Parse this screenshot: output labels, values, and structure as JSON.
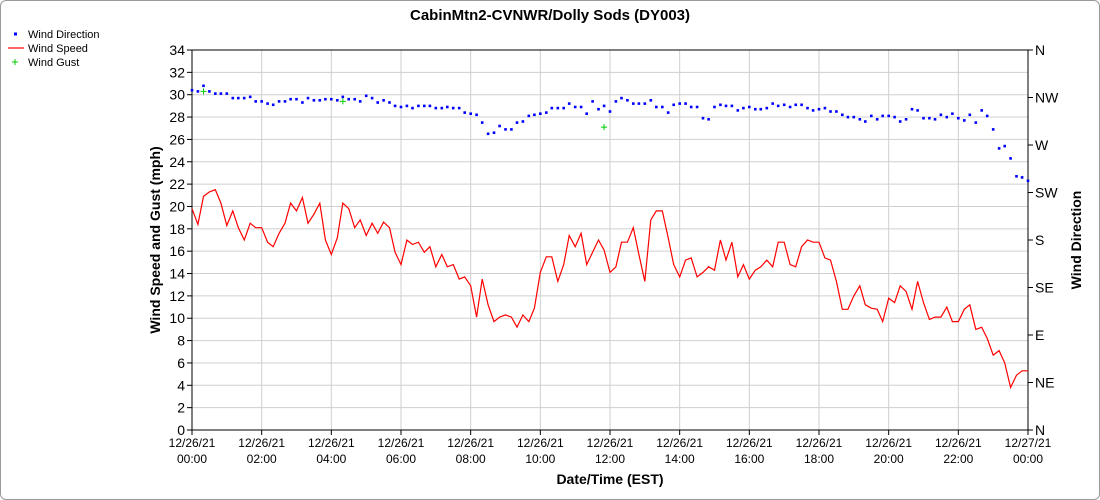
{
  "chart_data": {
    "type": "line",
    "title": "CabinMtn2-CVNWR/Dolly Sods (DY003)",
    "xlabel": "Date/Time (EST)",
    "ylabel_left": "Wind Speed and Gust (mph)",
    "ylabel_right": "Wind Direction",
    "y_left_range": [
      0,
      34
    ],
    "y_left_ticks": [
      "0",
      "2",
      "4",
      "6",
      "8",
      "10",
      "12",
      "14",
      "16",
      "18",
      "20",
      "22",
      "24",
      "26",
      "28",
      "30",
      "32",
      "34"
    ],
    "y_right_ticks": [
      "N",
      "NE",
      "E",
      "SE",
      "S",
      "SW",
      "W",
      "NW",
      "N"
    ],
    "x_range_hours": [
      0,
      24
    ],
    "x_ticks": [
      {
        "date": "12/26/21",
        "time": "00:00"
      },
      {
        "date": "12/26/21",
        "time": "02:00"
      },
      {
        "date": "12/26/21",
        "time": "04:00"
      },
      {
        "date": "12/26/21",
        "time": "06:00"
      },
      {
        "date": "12/26/21",
        "time": "08:00"
      },
      {
        "date": "12/26/21",
        "time": "10:00"
      },
      {
        "date": "12/26/21",
        "time": "12:00"
      },
      {
        "date": "12/26/21",
        "time": "14:00"
      },
      {
        "date": "12/26/21",
        "time": "16:00"
      },
      {
        "date": "12/26/21",
        "time": "18:00"
      },
      {
        "date": "12/26/21",
        "time": "20:00"
      },
      {
        "date": "12/26/21",
        "time": "22:00"
      },
      {
        "date": "12/27/21",
        "time": "00:00"
      }
    ],
    "grid": true,
    "legend_position": "top-left",
    "series": [
      {
        "name": "Wind Speed",
        "color": "#ff0000",
        "style": "line",
        "points": [
          [
            0,
            19.8
          ],
          [
            0.17,
            18.4
          ],
          [
            0.33,
            20.9
          ],
          [
            0.5,
            21.3
          ],
          [
            0.67,
            21.5
          ],
          [
            0.83,
            20.3
          ],
          [
            1.0,
            18.3
          ],
          [
            1.17,
            19.6
          ],
          [
            1.33,
            18.1
          ],
          [
            1.5,
            17.0
          ],
          [
            1.67,
            18.5
          ],
          [
            1.83,
            18.1
          ],
          [
            2.0,
            18.1
          ],
          [
            2.17,
            16.8
          ],
          [
            2.33,
            16.4
          ],
          [
            2.5,
            17.6
          ],
          [
            2.67,
            18.5
          ],
          [
            2.83,
            20.3
          ],
          [
            3.0,
            19.6
          ],
          [
            3.17,
            20.8
          ],
          [
            3.33,
            18.5
          ],
          [
            3.5,
            19.3
          ],
          [
            3.67,
            20.3
          ],
          [
            3.83,
            17.0
          ],
          [
            4.0,
            15.7
          ],
          [
            4.17,
            17.2
          ],
          [
            4.33,
            20.3
          ],
          [
            4.5,
            19.8
          ],
          [
            4.67,
            18.1
          ],
          [
            4.83,
            18.8
          ],
          [
            5.0,
            17.4
          ],
          [
            5.17,
            18.5
          ],
          [
            5.33,
            17.6
          ],
          [
            5.5,
            18.6
          ],
          [
            5.67,
            18.1
          ],
          [
            5.83,
            15.9
          ],
          [
            6.0,
            14.8
          ],
          [
            6.17,
            17.0
          ],
          [
            6.33,
            16.6
          ],
          [
            6.5,
            16.8
          ],
          [
            6.67,
            15.9
          ],
          [
            6.83,
            16.4
          ],
          [
            7.0,
            14.6
          ],
          [
            7.17,
            15.7
          ],
          [
            7.33,
            14.6
          ],
          [
            7.5,
            14.8
          ],
          [
            7.67,
            13.5
          ],
          [
            7.83,
            13.7
          ],
          [
            8.0,
            12.9
          ],
          [
            8.17,
            10.1
          ],
          [
            8.33,
            13.5
          ],
          [
            8.5,
            11.2
          ],
          [
            8.67,
            9.7
          ],
          [
            8.83,
            10.1
          ],
          [
            9.0,
            10.3
          ],
          [
            9.17,
            10.1
          ],
          [
            9.33,
            9.2
          ],
          [
            9.5,
            10.3
          ],
          [
            9.67,
            9.7
          ],
          [
            9.83,
            10.9
          ],
          [
            10.0,
            14.1
          ],
          [
            10.17,
            15.5
          ],
          [
            10.33,
            15.5
          ],
          [
            10.5,
            13.3
          ],
          [
            10.67,
            14.8
          ],
          [
            10.83,
            17.4
          ],
          [
            11.0,
            16.4
          ],
          [
            11.17,
            17.6
          ],
          [
            11.33,
            14.8
          ],
          [
            11.5,
            15.9
          ],
          [
            11.67,
            17.0
          ],
          [
            11.83,
            16.1
          ],
          [
            12.0,
            14.1
          ],
          [
            12.17,
            14.6
          ],
          [
            12.33,
            16.8
          ],
          [
            12.5,
            16.8
          ],
          [
            12.67,
            18.1
          ],
          [
            12.83,
            15.7
          ],
          [
            13.0,
            13.3
          ],
          [
            13.17,
            18.8
          ],
          [
            13.33,
            19.6
          ],
          [
            13.5,
            19.6
          ],
          [
            13.67,
            17.2
          ],
          [
            13.83,
            14.8
          ],
          [
            14.0,
            13.7
          ],
          [
            14.17,
            15.2
          ],
          [
            14.33,
            15.4
          ],
          [
            14.5,
            13.7
          ],
          [
            14.67,
            14.1
          ],
          [
            14.83,
            14.6
          ],
          [
            15.0,
            14.3
          ],
          [
            15.17,
            17.0
          ],
          [
            15.33,
            15.2
          ],
          [
            15.5,
            16.8
          ],
          [
            15.67,
            13.7
          ],
          [
            15.83,
            14.8
          ],
          [
            16.0,
            13.5
          ],
          [
            16.17,
            14.3
          ],
          [
            16.33,
            14.6
          ],
          [
            16.5,
            15.2
          ],
          [
            16.67,
            14.6
          ],
          [
            16.83,
            16.8
          ],
          [
            17.0,
            16.8
          ],
          [
            17.17,
            14.8
          ],
          [
            17.33,
            14.6
          ],
          [
            17.5,
            16.4
          ],
          [
            17.67,
            17.0
          ],
          [
            17.83,
            16.8
          ],
          [
            18.0,
            16.8
          ],
          [
            18.17,
            15.4
          ],
          [
            18.33,
            15.2
          ],
          [
            18.5,
            13.3
          ],
          [
            18.67,
            10.8
          ],
          [
            18.83,
            10.8
          ],
          [
            19.0,
            12.0
          ],
          [
            19.17,
            12.9
          ],
          [
            19.33,
            11.2
          ],
          [
            19.5,
            10.9
          ],
          [
            19.67,
            10.8
          ],
          [
            19.83,
            9.7
          ],
          [
            20.0,
            11.8
          ],
          [
            20.17,
            11.4
          ],
          [
            20.33,
            12.9
          ],
          [
            20.5,
            12.4
          ],
          [
            20.67,
            10.8
          ],
          [
            20.83,
            13.3
          ],
          [
            21.0,
            11.4
          ],
          [
            21.17,
            9.9
          ],
          [
            21.33,
            10.1
          ],
          [
            21.5,
            10.1
          ],
          [
            21.67,
            11.0
          ],
          [
            21.83,
            9.7
          ],
          [
            22.0,
            9.7
          ],
          [
            22.17,
            10.8
          ],
          [
            22.33,
            11.2
          ],
          [
            22.5,
            9.0
          ],
          [
            22.67,
            9.2
          ],
          [
            22.83,
            8.2
          ],
          [
            23.0,
            6.7
          ],
          [
            23.17,
            7.1
          ],
          [
            23.33,
            6.0
          ],
          [
            23.5,
            3.8
          ],
          [
            23.67,
            4.9
          ],
          [
            23.83,
            5.3
          ],
          [
            24.0,
            5.3
          ]
        ]
      },
      {
        "name": "Wind Direction",
        "color": "#0000ff",
        "style": "dots",
        "points": [
          [
            0,
            30.4
          ],
          [
            0.17,
            30.3
          ],
          [
            0.33,
            30.8
          ],
          [
            0.5,
            30.3
          ],
          [
            0.67,
            30.1
          ],
          [
            0.83,
            30.1
          ],
          [
            1.0,
            30.1
          ],
          [
            1.17,
            29.7
          ],
          [
            1.33,
            29.7
          ],
          [
            1.5,
            29.7
          ],
          [
            1.67,
            29.8
          ],
          [
            1.83,
            29.4
          ],
          [
            2.0,
            29.4
          ],
          [
            2.17,
            29.2
          ],
          [
            2.33,
            29.1
          ],
          [
            2.5,
            29.4
          ],
          [
            2.67,
            29.4
          ],
          [
            2.83,
            29.6
          ],
          [
            3.0,
            29.6
          ],
          [
            3.17,
            29.3
          ],
          [
            3.33,
            29.7
          ],
          [
            3.5,
            29.5
          ],
          [
            3.67,
            29.5
          ],
          [
            3.83,
            29.6
          ],
          [
            4.0,
            29.6
          ],
          [
            4.17,
            29.5
          ],
          [
            4.33,
            29.8
          ],
          [
            4.5,
            29.6
          ],
          [
            4.67,
            29.6
          ],
          [
            4.83,
            29.4
          ],
          [
            5.0,
            29.9
          ],
          [
            5.17,
            29.7
          ],
          [
            5.33,
            29.3
          ],
          [
            5.5,
            29.5
          ],
          [
            5.67,
            29.3
          ],
          [
            5.83,
            29.0
          ],
          [
            6.0,
            28.9
          ],
          [
            6.17,
            29.0
          ],
          [
            6.33,
            28.8
          ],
          [
            6.5,
            29.0
          ],
          [
            6.67,
            29.0
          ],
          [
            6.83,
            29.0
          ],
          [
            7.0,
            28.8
          ],
          [
            7.17,
            28.8
          ],
          [
            7.33,
            28.9
          ],
          [
            7.5,
            28.8
          ],
          [
            7.67,
            28.8
          ],
          [
            7.83,
            28.4
          ],
          [
            8.0,
            28.3
          ],
          [
            8.17,
            28.2
          ],
          [
            8.33,
            27.5
          ],
          [
            8.5,
            26.5
          ],
          [
            8.67,
            26.6
          ],
          [
            8.83,
            27.2
          ],
          [
            9.0,
            26.9
          ],
          [
            9.17,
            26.9
          ],
          [
            9.33,
            27.5
          ],
          [
            9.5,
            27.6
          ],
          [
            9.67,
            28.1
          ],
          [
            9.83,
            28.2
          ],
          [
            10.0,
            28.3
          ],
          [
            10.17,
            28.4
          ],
          [
            10.33,
            28.8
          ],
          [
            10.5,
            28.8
          ],
          [
            10.67,
            28.8
          ],
          [
            10.83,
            29.2
          ],
          [
            11.0,
            28.9
          ],
          [
            11.17,
            28.9
          ],
          [
            11.33,
            28.3
          ],
          [
            11.5,
            29.4
          ],
          [
            11.67,
            28.7
          ],
          [
            11.83,
            29.0
          ],
          [
            12.0,
            28.5
          ],
          [
            12.17,
            29.4
          ],
          [
            12.33,
            29.7
          ],
          [
            12.5,
            29.5
          ],
          [
            12.67,
            29.2
          ],
          [
            12.83,
            29.2
          ],
          [
            13.0,
            29.2
          ],
          [
            13.17,
            29.5
          ],
          [
            13.33,
            28.9
          ],
          [
            13.5,
            28.9
          ],
          [
            13.67,
            28.4
          ],
          [
            13.83,
            29.1
          ],
          [
            14.0,
            29.2
          ],
          [
            14.17,
            29.2
          ],
          [
            14.33,
            28.9
          ],
          [
            14.5,
            28.9
          ],
          [
            14.67,
            27.9
          ],
          [
            14.83,
            27.8
          ],
          [
            15.0,
            28.9
          ],
          [
            15.17,
            29.1
          ],
          [
            15.33,
            29.0
          ],
          [
            15.5,
            29.0
          ],
          [
            15.67,
            28.6
          ],
          [
            15.83,
            28.8
          ],
          [
            16.0,
            28.9
          ],
          [
            16.17,
            28.7
          ],
          [
            16.33,
            28.7
          ],
          [
            16.5,
            28.8
          ],
          [
            16.67,
            29.2
          ],
          [
            16.83,
            29.0
          ],
          [
            17.0,
            29.1
          ],
          [
            17.17,
            28.9
          ],
          [
            17.33,
            29.1
          ],
          [
            17.5,
            29.1
          ],
          [
            17.67,
            28.8
          ],
          [
            17.83,
            28.6
          ],
          [
            18.0,
            28.7
          ],
          [
            18.17,
            28.8
          ],
          [
            18.33,
            28.5
          ],
          [
            18.5,
            28.5
          ],
          [
            18.67,
            28.2
          ],
          [
            18.83,
            28.0
          ],
          [
            19.0,
            28.0
          ],
          [
            19.17,
            27.8
          ],
          [
            19.33,
            27.6
          ],
          [
            19.5,
            28.1
          ],
          [
            19.67,
            27.8
          ],
          [
            19.83,
            28.1
          ],
          [
            20.0,
            28.1
          ],
          [
            20.17,
            28.0
          ],
          [
            20.33,
            27.6
          ],
          [
            20.5,
            27.8
          ],
          [
            20.67,
            28.7
          ],
          [
            20.83,
            28.6
          ],
          [
            21.0,
            27.9
          ],
          [
            21.17,
            27.9
          ],
          [
            21.33,
            27.8
          ],
          [
            21.5,
            28.2
          ],
          [
            21.67,
            28.0
          ],
          [
            21.83,
            28.3
          ],
          [
            22.0,
            27.9
          ],
          [
            22.17,
            27.7
          ],
          [
            22.33,
            28.2
          ],
          [
            22.5,
            27.5
          ],
          [
            22.67,
            28.6
          ],
          [
            22.83,
            28.1
          ],
          [
            23.0,
            26.9
          ],
          [
            23.17,
            25.2
          ],
          [
            23.33,
            25.4
          ],
          [
            23.5,
            24.3
          ],
          [
            23.67,
            22.7
          ],
          [
            23.83,
            22.6
          ],
          [
            24.0,
            22.3
          ]
        ]
      },
      {
        "name": "Wind Gust",
        "color": "#00cc00",
        "style": "plus",
        "points": [
          [
            0.33,
            30.3
          ],
          [
            4.33,
            29.4
          ],
          [
            11.83,
            27.1
          ]
        ]
      }
    ]
  }
}
